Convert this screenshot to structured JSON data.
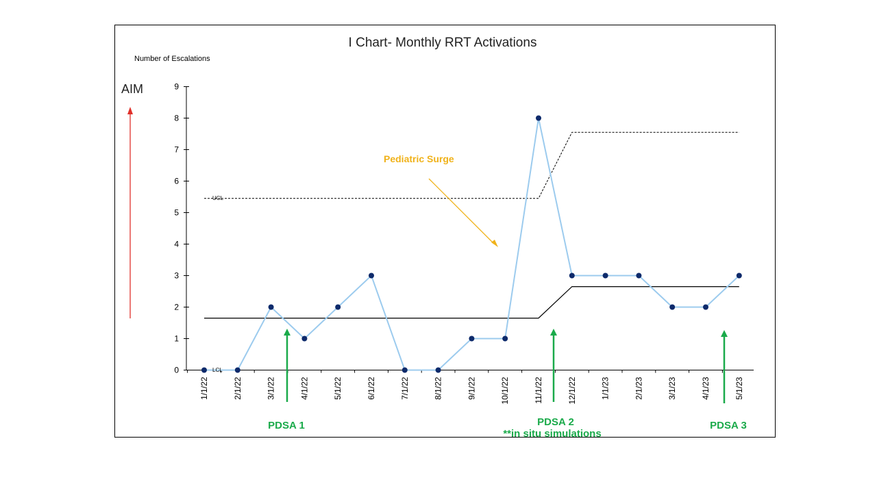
{
  "chart_data": {
    "type": "line",
    "title": "I Chart- Monthly RRT Activations",
    "ylabel": "Number of Escalations",
    "ylim": [
      0,
      9
    ],
    "yticks": [
      0,
      1,
      2,
      3,
      4,
      5,
      6,
      7,
      8,
      9
    ],
    "categories": [
      "1/1/22",
      "2/1/22",
      "3/1/22",
      "4/1/22",
      "5/1/22",
      "6/1/22",
      "7/1/22",
      "8/1/22",
      "9/1/22",
      "10/1/22",
      "11/1/22",
      "12/1/22",
      "1/1/23",
      "2/1/23",
      "3/1/23",
      "4/1/23",
      "5/1/23"
    ],
    "series": [
      {
        "values": [
          0,
          0,
          2,
          1,
          2,
          3,
          0,
          0,
          1,
          1,
          8,
          3,
          3,
          3,
          2,
          2,
          3
        ]
      }
    ],
    "mean_line": [
      1.65,
      1.65,
      1.65,
      1.65,
      1.65,
      1.65,
      1.65,
      1.65,
      1.65,
      1.65,
      1.65,
      2.65,
      2.65,
      2.65,
      2.65,
      2.65,
      2.65
    ],
    "ucl_line": [
      5.45,
      5.45,
      5.45,
      5.45,
      5.45,
      5.45,
      5.45,
      5.45,
      5.45,
      5.45,
      5.45,
      7.55,
      7.55,
      7.55,
      7.55,
      7.55,
      7.55
    ],
    "ucl_label": "UCL",
    "lcl_label": "LCL",
    "aim_label": "AIM",
    "annotations": {
      "surge": "Pediatric Surge",
      "pdsa1": "PDSA 1",
      "pdsa2": "PDSA 2",
      "pdsa2_sub": "**in situ simulations",
      "pdsa3": "PDSA 3"
    },
    "colors": {
      "data_line": "#9ccbee",
      "data_point": "#0d2a6b",
      "mean_line": "#000000",
      "aim_arrow": "#e0302a",
      "pdsa": "#1aaa4a",
      "surge": "#f0b21a"
    }
  }
}
